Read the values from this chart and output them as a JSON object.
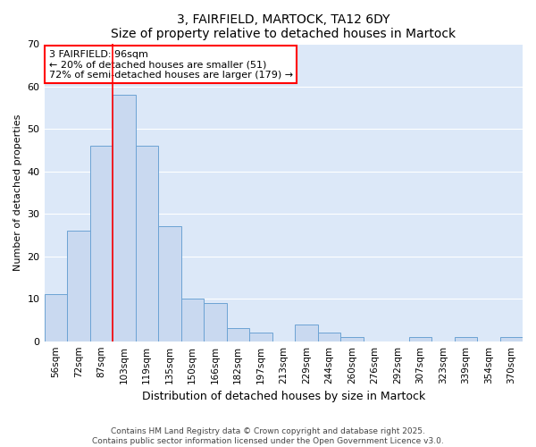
{
  "title": "3, FAIRFIELD, MARTOCK, TA12 6DY",
  "subtitle": "Size of property relative to detached houses in Martock",
  "xlabel": "Distribution of detached houses by size in Martock",
  "ylabel": "Number of detached properties",
  "bar_labels": [
    "56sqm",
    "72sqm",
    "87sqm",
    "103sqm",
    "119sqm",
    "135sqm",
    "150sqm",
    "166sqm",
    "182sqm",
    "197sqm",
    "213sqm",
    "229sqm",
    "244sqm",
    "260sqm",
    "276sqm",
    "292sqm",
    "307sqm",
    "323sqm",
    "339sqm",
    "354sqm",
    "370sqm"
  ],
  "bar_values": [
    11,
    26,
    46,
    58,
    46,
    27,
    10,
    9,
    3,
    2,
    0,
    4,
    2,
    1,
    0,
    0,
    1,
    0,
    1,
    0,
    1
  ],
  "bar_color": "#c9d9f0",
  "bar_edge_color": "#6ca3d4",
  "ylim": [
    0,
    70
  ],
  "yticks": [
    0,
    10,
    20,
    30,
    40,
    50,
    60,
    70
  ],
  "property_line_label": "3 FAIRFIELD: 96sqm",
  "annotation_smaller": "← 20% of detached houses are smaller (51)",
  "annotation_larger": "72% of semi-detached houses are larger (179) →",
  "footer_line1": "Contains HM Land Registry data © Crown copyright and database right 2025.",
  "footer_line2": "Contains public sector information licensed under the Open Government Licence v3.0.",
  "bg_color": "#ffffff",
  "grid_color": "#ffffff",
  "plot_bg_color": "#dce8f8"
}
